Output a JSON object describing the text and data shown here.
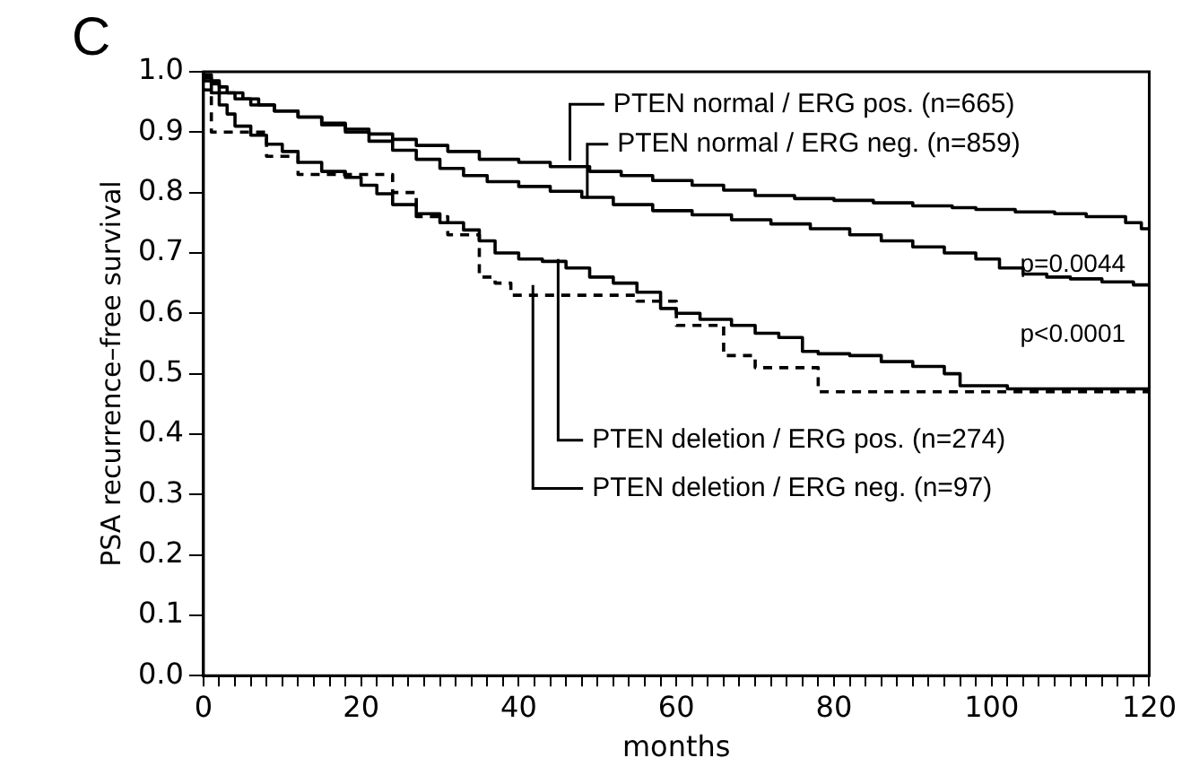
{
  "chart_data": {
    "type": "step",
    "xlabel": "months",
    "ylabel": "PSA recurrence–free survival",
    "annotations": [
      "C",
      "p=0.0044",
      "p<0.0001"
    ],
    "xlim": [
      0,
      120
    ],
    "ylim": [
      0,
      1
    ],
    "xticks": [
      0,
      {
        "value": 2,
        "label": null
      },
      {
        "value": 4,
        "label": null
      },
      {
        "value": 6,
        "label": null
      },
      {
        "value": 8,
        "label": null
      },
      {
        "value": 10,
        "label": null
      },
      {
        "value": 12,
        "label": null
      },
      {
        "value": 14,
        "label": null
      },
      {
        "value": 16,
        "label": null
      },
      {
        "value": 18,
        "label": null
      },
      20,
      {
        "value": 22,
        "label": null
      },
      {
        "value": 24,
        "label": null
      },
      {
        "value": 26,
        "label": null
      },
      {
        "value": 28,
        "label": null
      },
      {
        "value": 30,
        "label": null
      },
      {
        "value": 32,
        "label": null
      },
      {
        "value": 34,
        "label": null
      },
      {
        "value": 36,
        "label": null
      },
      {
        "value": 38,
        "label": null
      },
      40,
      {
        "value": 42,
        "label": null
      },
      {
        "value": 44,
        "label": null
      },
      {
        "value": 46,
        "label": null
      },
      {
        "value": 48,
        "label": null
      },
      {
        "value": 50,
        "label": null
      },
      {
        "value": 52,
        "label": null
      },
      {
        "value": 54,
        "label": null
      },
      {
        "value": 56,
        "label": null
      },
      {
        "value": 58,
        "label": null
      },
      60,
      {
        "value": 62,
        "label": null
      },
      {
        "value": 64,
        "label": null
      },
      {
        "value": 66,
        "label": null
      },
      {
        "value": 68,
        "label": null
      },
      {
        "value": 70,
        "label": null
      },
      {
        "value": 72,
        "label": null
      },
      {
        "value": 74,
        "label": null
      },
      {
        "value": 76,
        "label": null
      },
      {
        "value": 78,
        "label": null
      },
      80,
      {
        "value": 82,
        "label": null
      },
      {
        "value": 84,
        "label": null
      },
      {
        "value": 86,
        "label": null
      },
      {
        "value": 88,
        "label": null
      },
      {
        "value": 90,
        "label": null
      },
      {
        "value": 92,
        "label": null
      },
      {
        "value": 94,
        "label": null
      },
      {
        "value": 96,
        "label": null
      },
      {
        "value": 98,
        "label": null
      },
      100,
      {
        "value": 102,
        "label": null
      },
      {
        "value": 104,
        "label": null
      },
      {
        "value": 106,
        "label": null
      },
      {
        "value": 108,
        "label": null
      },
      {
        "value": 110,
        "label": null
      },
      {
        "value": 112,
        "label": null
      },
      {
        "value": 114,
        "label": null
      },
      {
        "value": 116,
        "label": null
      },
      {
        "value": 118,
        "label": null
      },
      120
    ],
    "yticks": [
      {
        "value": 0,
        "label": "0.0"
      },
      {
        "value": 0.1,
        "label": "0.1"
      },
      {
        "value": 0.2,
        "label": "0.2"
      },
      {
        "value": 0.3,
        "label": "0.3"
      },
      {
        "value": 0.4,
        "label": "0.4"
      },
      {
        "value": 0.5,
        "label": "0.5"
      },
      {
        "value": 0.6,
        "label": "0.6"
      },
      {
        "value": 0.7,
        "label": "0.7"
      },
      {
        "value": 0.8,
        "label": "0.8"
      },
      {
        "value": 0.9,
        "label": "0.9"
      },
      {
        "value": 1,
        "label": "1.0"
      }
    ],
    "grid": false,
    "legend": "top right",
    "marker": "none",
    "series": [
      {
        "name": "PTEN normal / ERG pos. (n=665)",
        "color": "#000000",
        "line_style": "solid",
        "x": [
          0,
          1,
          2,
          3,
          5,
          7,
          9,
          12,
          15,
          18,
          21,
          24,
          27,
          31,
          35,
          40,
          44,
          49,
          53,
          57,
          62,
          66,
          70,
          75,
          80,
          85,
          90,
          95,
          98,
          103,
          108,
          112,
          117,
          119,
          120
        ],
        "values": [
          1,
          0.995,
          0.985,
          0.975,
          0.965,
          0.955,
          0.945,
          0.935,
          0.925,
          0.915,
          0.905,
          0.897,
          0.888,
          0.878,
          0.868,
          0.855,
          0.85,
          0.843,
          0.835,
          0.828,
          0.82,
          0.812,
          0.804,
          0.795,
          0.79,
          0.787,
          0.783,
          0.778,
          0.775,
          0.772,
          0.768,
          0.765,
          0.76,
          0.75,
          0.74
        ]
      },
      {
        "name": "PTEN normal / ERG neg. (n=859)",
        "color": "#000000",
        "line_style": "solid",
        "x": [
          0,
          1,
          2,
          4,
          6,
          9,
          12,
          15,
          18,
          21,
          24,
          27,
          30,
          33,
          36,
          40,
          44,
          48,
          52,
          57,
          62,
          67,
          72,
          77,
          82,
          86,
          90,
          94,
          98,
          101,
          104,
          107,
          110,
          114,
          118,
          120
        ],
        "values": [
          1,
          0.99,
          0.98,
          0.965,
          0.955,
          0.945,
          0.935,
          0.925,
          0.912,
          0.9,
          0.885,
          0.87,
          0.855,
          0.84,
          0.828,
          0.818,
          0.81,
          0.802,
          0.792,
          0.78,
          0.77,
          0.763,
          0.755,
          0.748,
          0.74,
          0.73,
          0.72,
          0.71,
          0.7,
          0.69,
          0.675,
          0.665,
          0.66,
          0.657,
          0.652,
          0.647
        ]
      },
      {
        "name": "PTEN deletion / ERG pos. (n=274)",
        "color": "#000000",
        "line_style": "solid",
        "x": [
          0,
          1,
          2,
          3,
          4,
          6,
          8,
          10,
          12,
          15,
          18,
          20,
          22,
          24,
          27,
          30,
          33,
          35,
          37,
          40,
          43,
          46,
          49,
          52,
          55,
          58,
          60,
          63,
          67,
          70,
          73,
          76,
          78,
          82,
          86,
          90,
          94,
          96,
          102,
          120
        ],
        "values": [
          1,
          0.985,
          0.965,
          0.945,
          0.93,
          0.91,
          0.895,
          0.88,
          0.868,
          0.85,
          0.835,
          0.825,
          0.812,
          0.798,
          0.78,
          0.765,
          0.75,
          0.738,
          0.72,
          0.7,
          0.69,
          0.686,
          0.675,
          0.66,
          0.65,
          0.635,
          0.608,
          0.6,
          0.59,
          0.58,
          0.567,
          0.56,
          0.537,
          0.533,
          0.53,
          0.52,
          0.512,
          0.5,
          0.48,
          0.475
        ]
      },
      {
        "name": "PTEN deletion / ERG neg. (n=97)",
        "color": "#000000",
        "line_style": "dashed",
        "x": [
          0,
          1,
          4,
          8,
          12,
          18,
          24,
          27,
          31,
          32,
          35,
          37,
          39,
          55,
          60,
          66,
          70,
          78,
          87,
          120
        ],
        "values": [
          1,
          0.97,
          0.9,
          0.9,
          0.86,
          0.83,
          0.83,
          0.8,
          0.76,
          0.73,
          0.73,
          0.66,
          0.65,
          0.63,
          0.62,
          0.58,
          0.53,
          0.51,
          0.47,
          0.47
        ]
      }
    ]
  }
}
